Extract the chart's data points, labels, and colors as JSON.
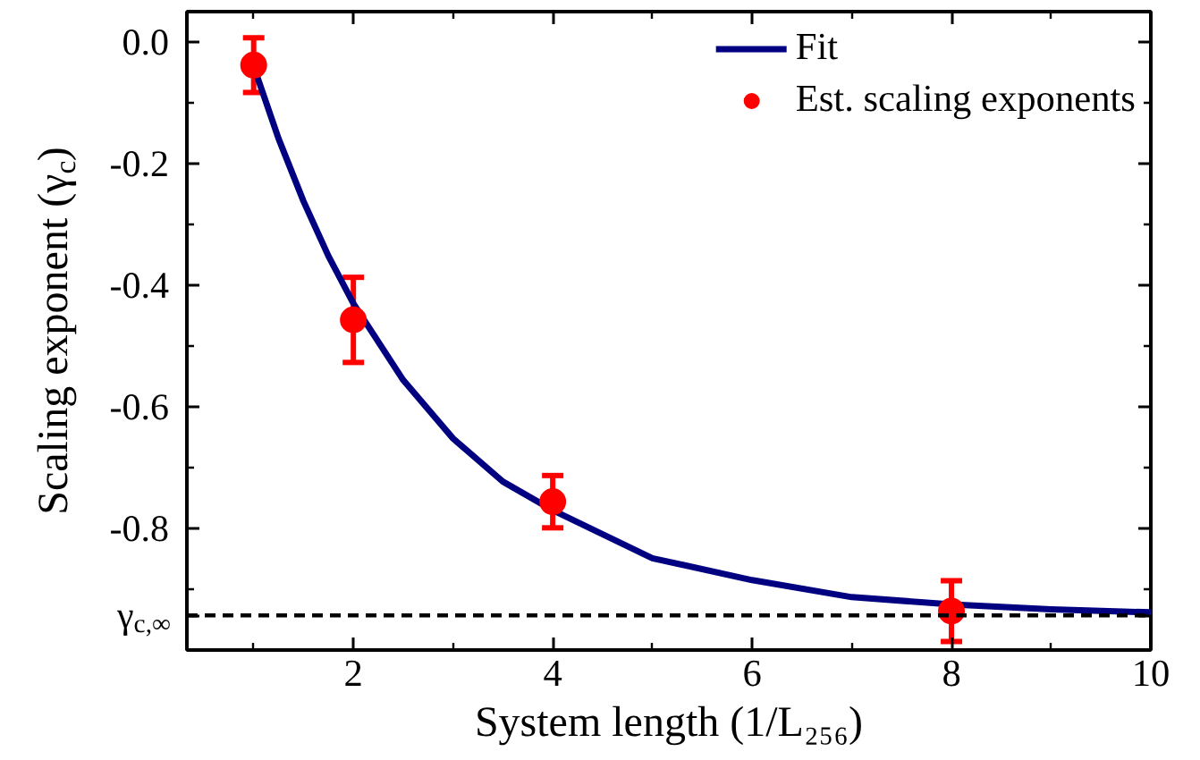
{
  "chart_data": {
    "type": "scatter",
    "xlabel": "System length (1/L₂₅₆)",
    "ylabel": "Scaling exponent (γ$_{c}$)",
    "xlim": [
      0.33,
      10
    ],
    "ylim": [
      -1.0,
      0.05
    ],
    "xticks": [
      {
        "value": 1,
        "label": null
      },
      2,
      {
        "value": 3,
        "label": null
      },
      4,
      {
        "value": 5,
        "label": null
      },
      6,
      {
        "value": 7,
        "label": null
      },
      8,
      {
        "value": 9,
        "label": null
      },
      10
    ],
    "yticks": [
      {
        "value": 0,
        "label": "0.0"
      },
      {
        "value": -0.1,
        "label": null
      },
      {
        "value": -0.2,
        "label": "-0.2"
      },
      {
        "value": -0.3,
        "label": null
      },
      {
        "value": -0.4,
        "label": "-0.4"
      },
      {
        "value": -0.5,
        "label": null
      },
      {
        "value": -0.6,
        "label": "-0.6"
      },
      {
        "value": -0.7,
        "label": null
      },
      {
        "value": -0.8,
        "label": "-0.8"
      },
      {
        "value": -0.9,
        "label": null
      }
    ],
    "series": [
      {
        "name": "Fit",
        "type": "line",
        "color": "#000080",
        "x": [
          1,
          1.25,
          1.5,
          1.75,
          2,
          2.5,
          3,
          3.5,
          4,
          5,
          6,
          7,
          8,
          9,
          10
        ],
        "values": [
          -0.04,
          -0.159,
          -0.262,
          -0.352,
          -0.43,
          -0.556,
          -0.652,
          -0.723,
          -0.77,
          -0.849,
          -0.885,
          -0.913,
          -0.925,
          -0.933,
          -0.938
        ]
      },
      {
        "name": "Est. scaling exponents",
        "color": "#ff0000",
        "marker": "circle",
        "x": [
          1,
          2,
          4,
          8
        ],
        "values": [
          -0.038,
          -0.457,
          -0.756,
          -0.936
        ],
        "errors": [
          0.045,
          0.07,
          0.043,
          0.05
        ]
      }
    ],
    "ref_lines": [
      {
        "axis": "y",
        "value": -0.943,
        "label": "γ$_{c,∞}$",
        "color": "#000000",
        "line_style": "dashed"
      }
    ],
    "legend": "top right",
    "grid": false
  }
}
